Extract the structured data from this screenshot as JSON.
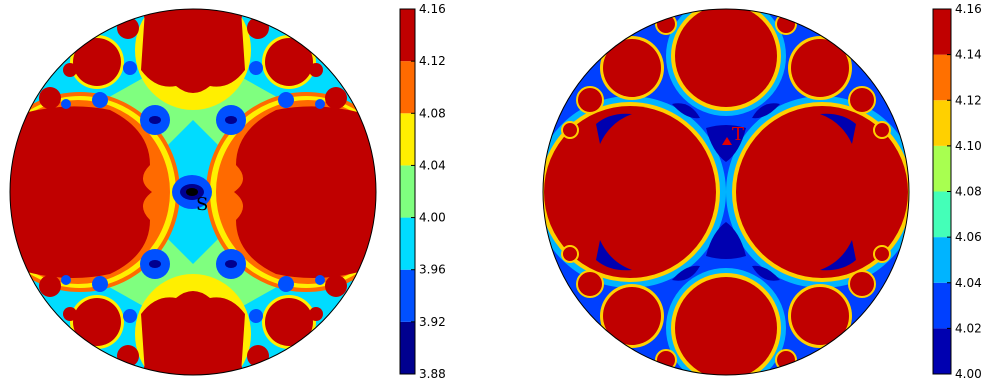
{
  "chart_data": [
    {
      "type": "heatmap",
      "domain": "disk",
      "title": "",
      "xlabel": "",
      "ylabel": "",
      "colorbar": {
        "orientation": "vertical",
        "placement": "right",
        "levels": [
          3.88,
          3.92,
          3.96,
          4.0,
          4.04,
          4.08,
          4.12,
          4.16
        ],
        "tick_labels": [
          "3.88",
          "3.92",
          "3.96",
          "4.00",
          "4.04",
          "4.08",
          "4.12",
          "4.16"
        ],
        "colors": [
          "#00008f",
          "#0050ff",
          "#00dcff",
          "#7fff7f",
          "#ffef00",
          "#ff6a00",
          "#c00000"
        ]
      },
      "marker": {
        "label": "S",
        "symbol": "dot",
        "color": "#000000"
      },
      "colors": {
        "minimum_core": "#000000"
      }
    },
    {
      "type": "heatmap",
      "domain": "disk",
      "title": "",
      "xlabel": "",
      "ylabel": "",
      "colorbar": {
        "orientation": "vertical",
        "placement": "right",
        "levels": [
          4.0,
          4.02,
          4.04,
          4.06,
          4.08,
          4.1,
          4.12,
          4.14,
          4.16
        ],
        "tick_labels": [
          "4.00",
          "4.02",
          "4.04",
          "4.06",
          "4.08",
          "4.10",
          "4.12",
          "4.14",
          "4.16"
        ],
        "colors": [
          "#0000b0",
          "#0040ff",
          "#00b4ff",
          "#44ffb8",
          "#a8ff50",
          "#ffd000",
          "#ff7000",
          "#c00000"
        ]
      },
      "marker": {
        "label": "T",
        "symbol": "triangle",
        "color": "#e00000"
      }
    }
  ]
}
